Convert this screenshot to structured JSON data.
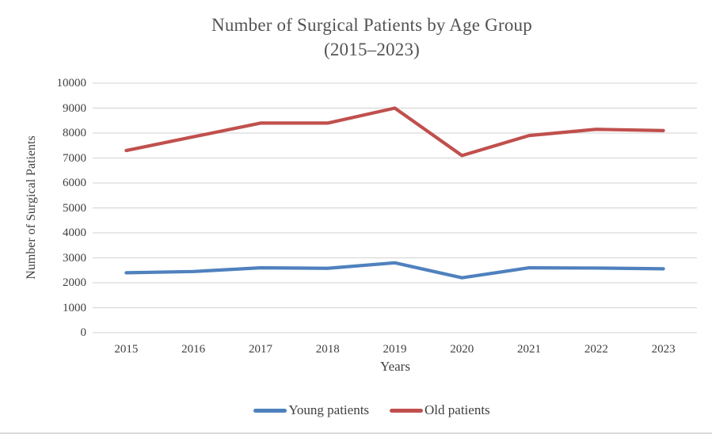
{
  "chart_data": {
    "type": "line",
    "title": "Number of Surgical Patients by Age Group",
    "subtitle": "(2015–2023)",
    "xlabel": "Years",
    "ylabel": "Number of Surgical Patients",
    "categories": [
      "2015",
      "2016",
      "2017",
      "2018",
      "2019",
      "2020",
      "2021",
      "2022",
      "2023"
    ],
    "series": [
      {
        "name": "Young patients",
        "color": "#4F81BD",
        "values": [
          2400,
          2450,
          2600,
          2580,
          2800,
          2200,
          2600,
          2590,
          2560
        ]
      },
      {
        "name": "Old patients",
        "color": "#C0504D",
        "values": [
          7300,
          7850,
          8400,
          8400,
          9000,
          7100,
          7900,
          8150,
          8100
        ]
      }
    ],
    "ylim": [
      0,
      10000
    ],
    "ytick_step": 1000,
    "grid": true,
    "grid_color": "#d9d9d9",
    "text_color": "#3f3f3f",
    "legend_position": "bottom"
  }
}
